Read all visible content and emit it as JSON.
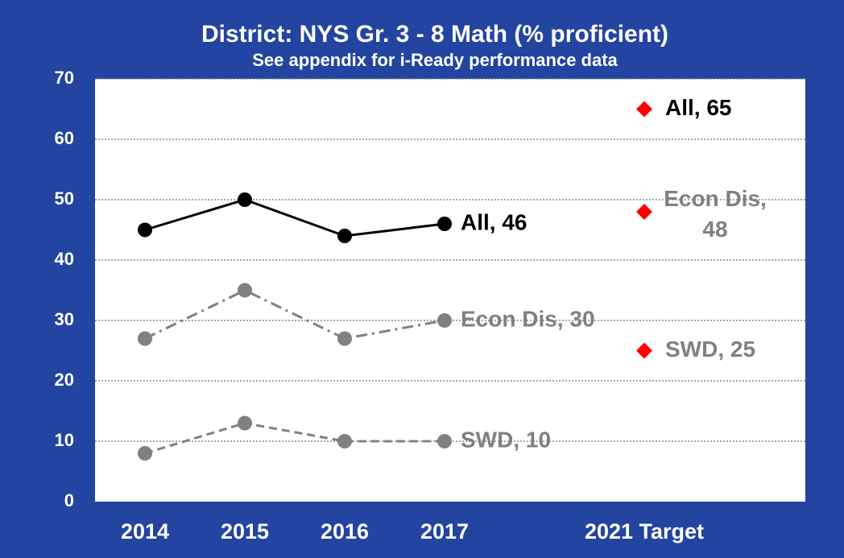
{
  "chart_data": {
    "type": "line",
    "title": "District:  NYS Gr. 3 - 8 Math (% proficient)",
    "subtitle": "See appendix for i-Ready performance data",
    "categories": [
      "2014",
      "2015",
      "2016",
      "2017",
      null,
      "2021 Target"
    ],
    "ylim": [
      0,
      70
    ],
    "yticks": [
      0,
      10,
      20,
      30,
      40,
      50,
      60,
      70
    ],
    "grid": true,
    "series": [
      {
        "color": "#000000",
        "dash": "solid",
        "marker": "circle",
        "values": [
          45,
          50,
          44,
          46,
          null,
          null
        ],
        "value_labels": [
          null,
          null,
          null,
          "All, 46",
          null,
          null
        ]
      },
      {
        "color": "#808080",
        "dash": "dashdot",
        "marker": "circle",
        "values": [
          27,
          35,
          27,
          30,
          null,
          null
        ],
        "value_labels": [
          null,
          null,
          null,
          "Econ Dis, 30",
          null,
          null
        ]
      },
      {
        "color": "#808080",
        "dash": "dashed",
        "marker": "circle",
        "values": [
          8,
          13,
          10,
          10,
          null,
          null
        ],
        "value_labels": [
          null,
          null,
          null,
          "SWD, 10",
          null,
          null
        ]
      },
      {
        "color": "#ff0000",
        "label_color": "#000000",
        "marker": "diamond",
        "values": [
          null,
          null,
          null,
          null,
          null,
          65
        ],
        "value_labels": [
          null,
          null,
          null,
          null,
          null,
          "All, 65"
        ]
      },
      {
        "color": "#ff0000",
        "label_color": "#808080",
        "marker": "diamond",
        "values": [
          null,
          null,
          null,
          null,
          null,
          48
        ],
        "value_labels": [
          null,
          null,
          null,
          null,
          null,
          "Econ Dis,\n48"
        ]
      },
      {
        "color": "#ff0000",
        "label_color": "#808080",
        "marker": "diamond",
        "values": [
          null,
          null,
          null,
          null,
          null,
          25
        ],
        "value_labels": [
          null,
          null,
          null,
          null,
          null,
          "SWD, 25"
        ]
      }
    ]
  }
}
